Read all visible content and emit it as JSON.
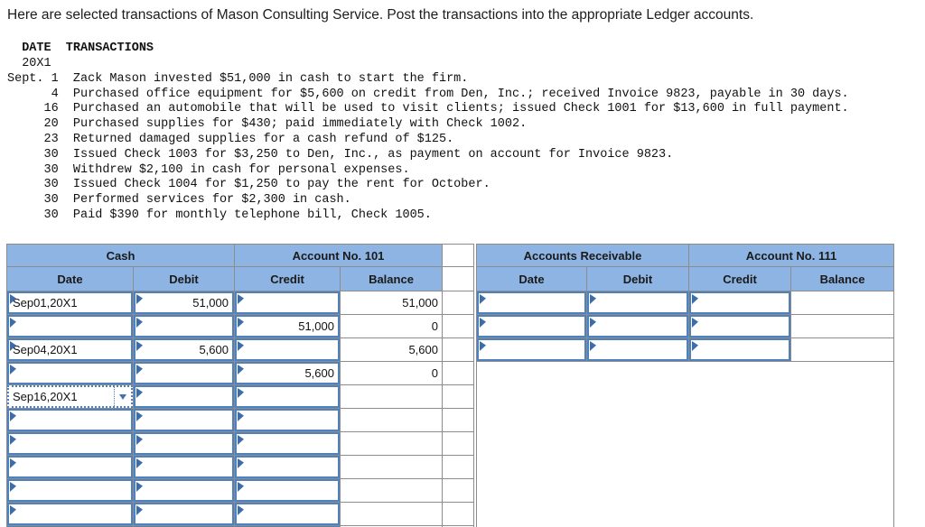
{
  "page": {
    "title": "Here are selected transactions of Mason Consulting Service. Post the transactions into the appropriate Ledger accounts."
  },
  "transactions": {
    "date_label": "DATE",
    "transactions_label": "TRANSACTIONS",
    "year": "20X1",
    "entries": [
      {
        "date": "Sept. 1",
        "text": "Zack Mason invested $51,000 in cash to start the firm."
      },
      {
        "date": "4",
        "text": "Purchased office equipment for $5,600 on credit from Den, Inc.; received Invoice 9823, payable in 30 days."
      },
      {
        "date": "16",
        "text": "Purchased an automobile that will be used to visit clients; issued Check 1001 for $13,600 in full payment."
      },
      {
        "date": "20",
        "text": "Purchased supplies for $430; paid immediately with Check 1002."
      },
      {
        "date": "23",
        "text": "Returned damaged supplies for a cash refund of $125."
      },
      {
        "date": "30",
        "text": "Issued Check 1003 for $3,250 to Den, Inc., as payment on account for Invoice 9823."
      },
      {
        "date": "30",
        "text": "Withdrew $2,100 in cash for personal expenses."
      },
      {
        "date": "30",
        "text": "Issued Check 1004 for $1,250 to pay the rent for October."
      },
      {
        "date": "30",
        "text": "Performed services for $2,300 in cash."
      },
      {
        "date": "30",
        "text": "Paid $390 for monthly telephone bill, Check 1005."
      }
    ]
  },
  "ledgers": {
    "cash": {
      "title": "Cash",
      "account_no": "Account No. 101",
      "columns": [
        "Date",
        "Debit",
        "Credit",
        "Balance"
      ],
      "rows": [
        {
          "date": "Sep01,20X1",
          "debit": "51,000",
          "credit": "",
          "balance": "51,000"
        },
        {
          "date": "",
          "debit": "",
          "credit": "51,000",
          "balance": "0"
        },
        {
          "date": "Sep04,20X1",
          "debit": "5,600",
          "credit": "",
          "balance": "5,600"
        },
        {
          "date": "",
          "debit": "",
          "credit": "5,600",
          "balance": "0"
        },
        {
          "date": "Sep16,20X1",
          "debit": "",
          "credit": "",
          "balance": "",
          "active": true
        },
        {
          "date": "",
          "debit": "",
          "credit": "",
          "balance": ""
        },
        {
          "date": "",
          "debit": "",
          "credit": "",
          "balance": ""
        },
        {
          "date": "",
          "debit": "",
          "credit": "",
          "balance": ""
        },
        {
          "date": "",
          "debit": "",
          "credit": "",
          "balance": ""
        },
        {
          "date": "",
          "debit": "",
          "credit": "",
          "balance": ""
        },
        {
          "date": "",
          "debit": "",
          "credit": "",
          "balance": ""
        }
      ]
    },
    "accounts_receivable": {
      "title": "Accounts Receivable",
      "account_no": "Account No. 111",
      "columns": [
        "Date",
        "Debit",
        "Credit",
        "Balance"
      ],
      "rows": [
        {
          "date": "",
          "debit": "",
          "credit": "",
          "balance": ""
        },
        {
          "date": "",
          "debit": "",
          "credit": "",
          "balance": ""
        },
        {
          "date": "",
          "debit": "",
          "credit": "",
          "balance": ""
        }
      ]
    }
  },
  "colors": {
    "header_fill": "#8DB4E2",
    "input_border": "#4F81BD",
    "grid_line": "#8C8C8C",
    "flag": "#3B6DAD"
  }
}
